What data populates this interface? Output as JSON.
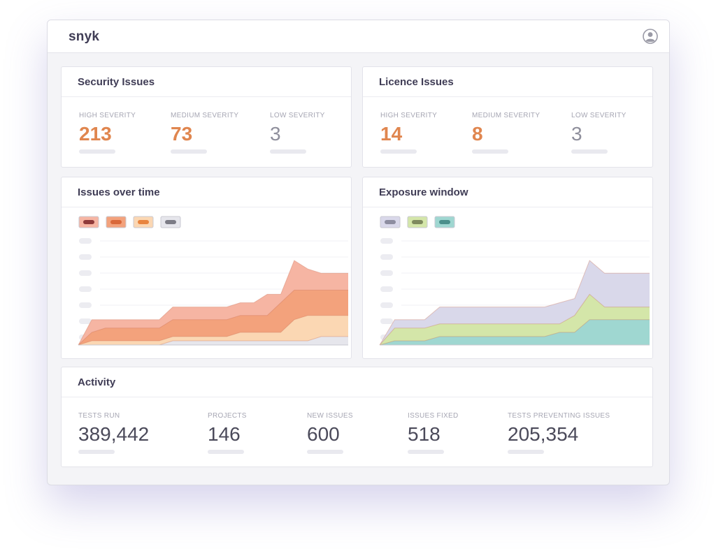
{
  "app": {
    "brand": "snyk"
  },
  "security": {
    "title": "Security Issues",
    "stats": [
      {
        "label": "HIGH SEVERITY",
        "value": "213"
      },
      {
        "label": "MEDIUM  SEVERITY",
        "value": "73"
      },
      {
        "label": "LOW SEVERITY",
        "value": "3"
      }
    ]
  },
  "licence": {
    "title": "Licence Issues",
    "stats": [
      {
        "label": "HIGH SEVERITY",
        "value": "14"
      },
      {
        "label": "MEDIUM  SEVERITY",
        "value": "8"
      },
      {
        "label": "LOW SEVERITY",
        "value": "3"
      }
    ]
  },
  "issues_chart": {
    "title": "Issues over time",
    "chart_data": {
      "type": "area",
      "title": "Issues over time",
      "stacked": false,
      "series": [
        {
          "color": "#f6b5a3",
          "values": [
            0,
            6,
            6,
            6,
            6,
            6,
            6,
            9,
            9,
            9,
            9,
            9,
            10,
            10,
            12,
            12,
            20,
            18,
            17,
            17,
            17
          ]
        },
        {
          "color": "#f3a27c",
          "values": [
            0,
            3,
            4,
            4,
            4,
            4,
            4,
            6,
            6,
            6,
            6,
            6,
            7,
            7,
            7,
            10,
            13,
            13,
            13,
            13,
            13
          ]
        },
        {
          "color": "#fbd7b3",
          "values": [
            0,
            1,
            1,
            1,
            1,
            1,
            1,
            2,
            2,
            2,
            2,
            2,
            3,
            3,
            3,
            3,
            6,
            7,
            7,
            7,
            7
          ]
        },
        {
          "color": "#e6e6ec",
          "values": [
            0,
            0,
            0,
            0,
            0,
            0,
            0,
            1,
            1,
            1,
            1,
            1,
            1,
            1,
            1,
            1,
            1,
            1,
            2,
            2,
            2
          ]
        }
      ],
      "ylim": [
        0,
        21
      ],
      "legend": "top-left",
      "legend_colors": [
        "#f6b5a3",
        "#f3a27c",
        "#fbd7b3",
        "#e6e6ec"
      ],
      "legend_pill_colors": [
        "#8f3a3a",
        "#d9683a",
        "#e8843f",
        "#7c7c86"
      ]
    }
  },
  "exposure_chart": {
    "title": "Exposure window",
    "chart_data": {
      "type": "area",
      "title": "Exposure window",
      "stacked": false,
      "series": [
        {
          "color": "#d9d8ea",
          "values": [
            0,
            6,
            6,
            6,
            9,
            9,
            9,
            9,
            9,
            9,
            9,
            9,
            10,
            11,
            20,
            17,
            17,
            17,
            17
          ]
        },
        {
          "color": "#d4e6a9",
          "values": [
            0,
            4,
            4,
            4,
            5,
            5,
            5,
            5,
            5,
            5,
            5,
            5,
            5,
            7,
            12,
            9,
            9,
            9,
            9
          ]
        },
        {
          "color": "#9fd7d1",
          "values": [
            0,
            1,
            1,
            1,
            2,
            2,
            2,
            2,
            2,
            2,
            2,
            2,
            3,
            3,
            6,
            6,
            6,
            6,
            6
          ]
        }
      ],
      "ylim": [
        0,
        21
      ],
      "legend": "top-left",
      "legend_colors": [
        "#d9d8ea",
        "#d4e6a9",
        "#9fd7d1"
      ],
      "legend_pill_colors": [
        "#8d8da0",
        "#7e8a5e",
        "#4a8f8b"
      ]
    }
  },
  "activity": {
    "title": "Activity",
    "stats": [
      {
        "label": "TESTS RUN",
        "value": "389,442"
      },
      {
        "label": "PROJECTS",
        "value": "146"
      },
      {
        "label": "NEW ISSUES",
        "value": "600"
      },
      {
        "label": "ISSUES FIXED",
        "value": "518"
      },
      {
        "label": "TESTS PREVENTING ISSUES",
        "value": "205,354"
      }
    ]
  },
  "icons": {
    "user": "user-avatar-icon"
  }
}
